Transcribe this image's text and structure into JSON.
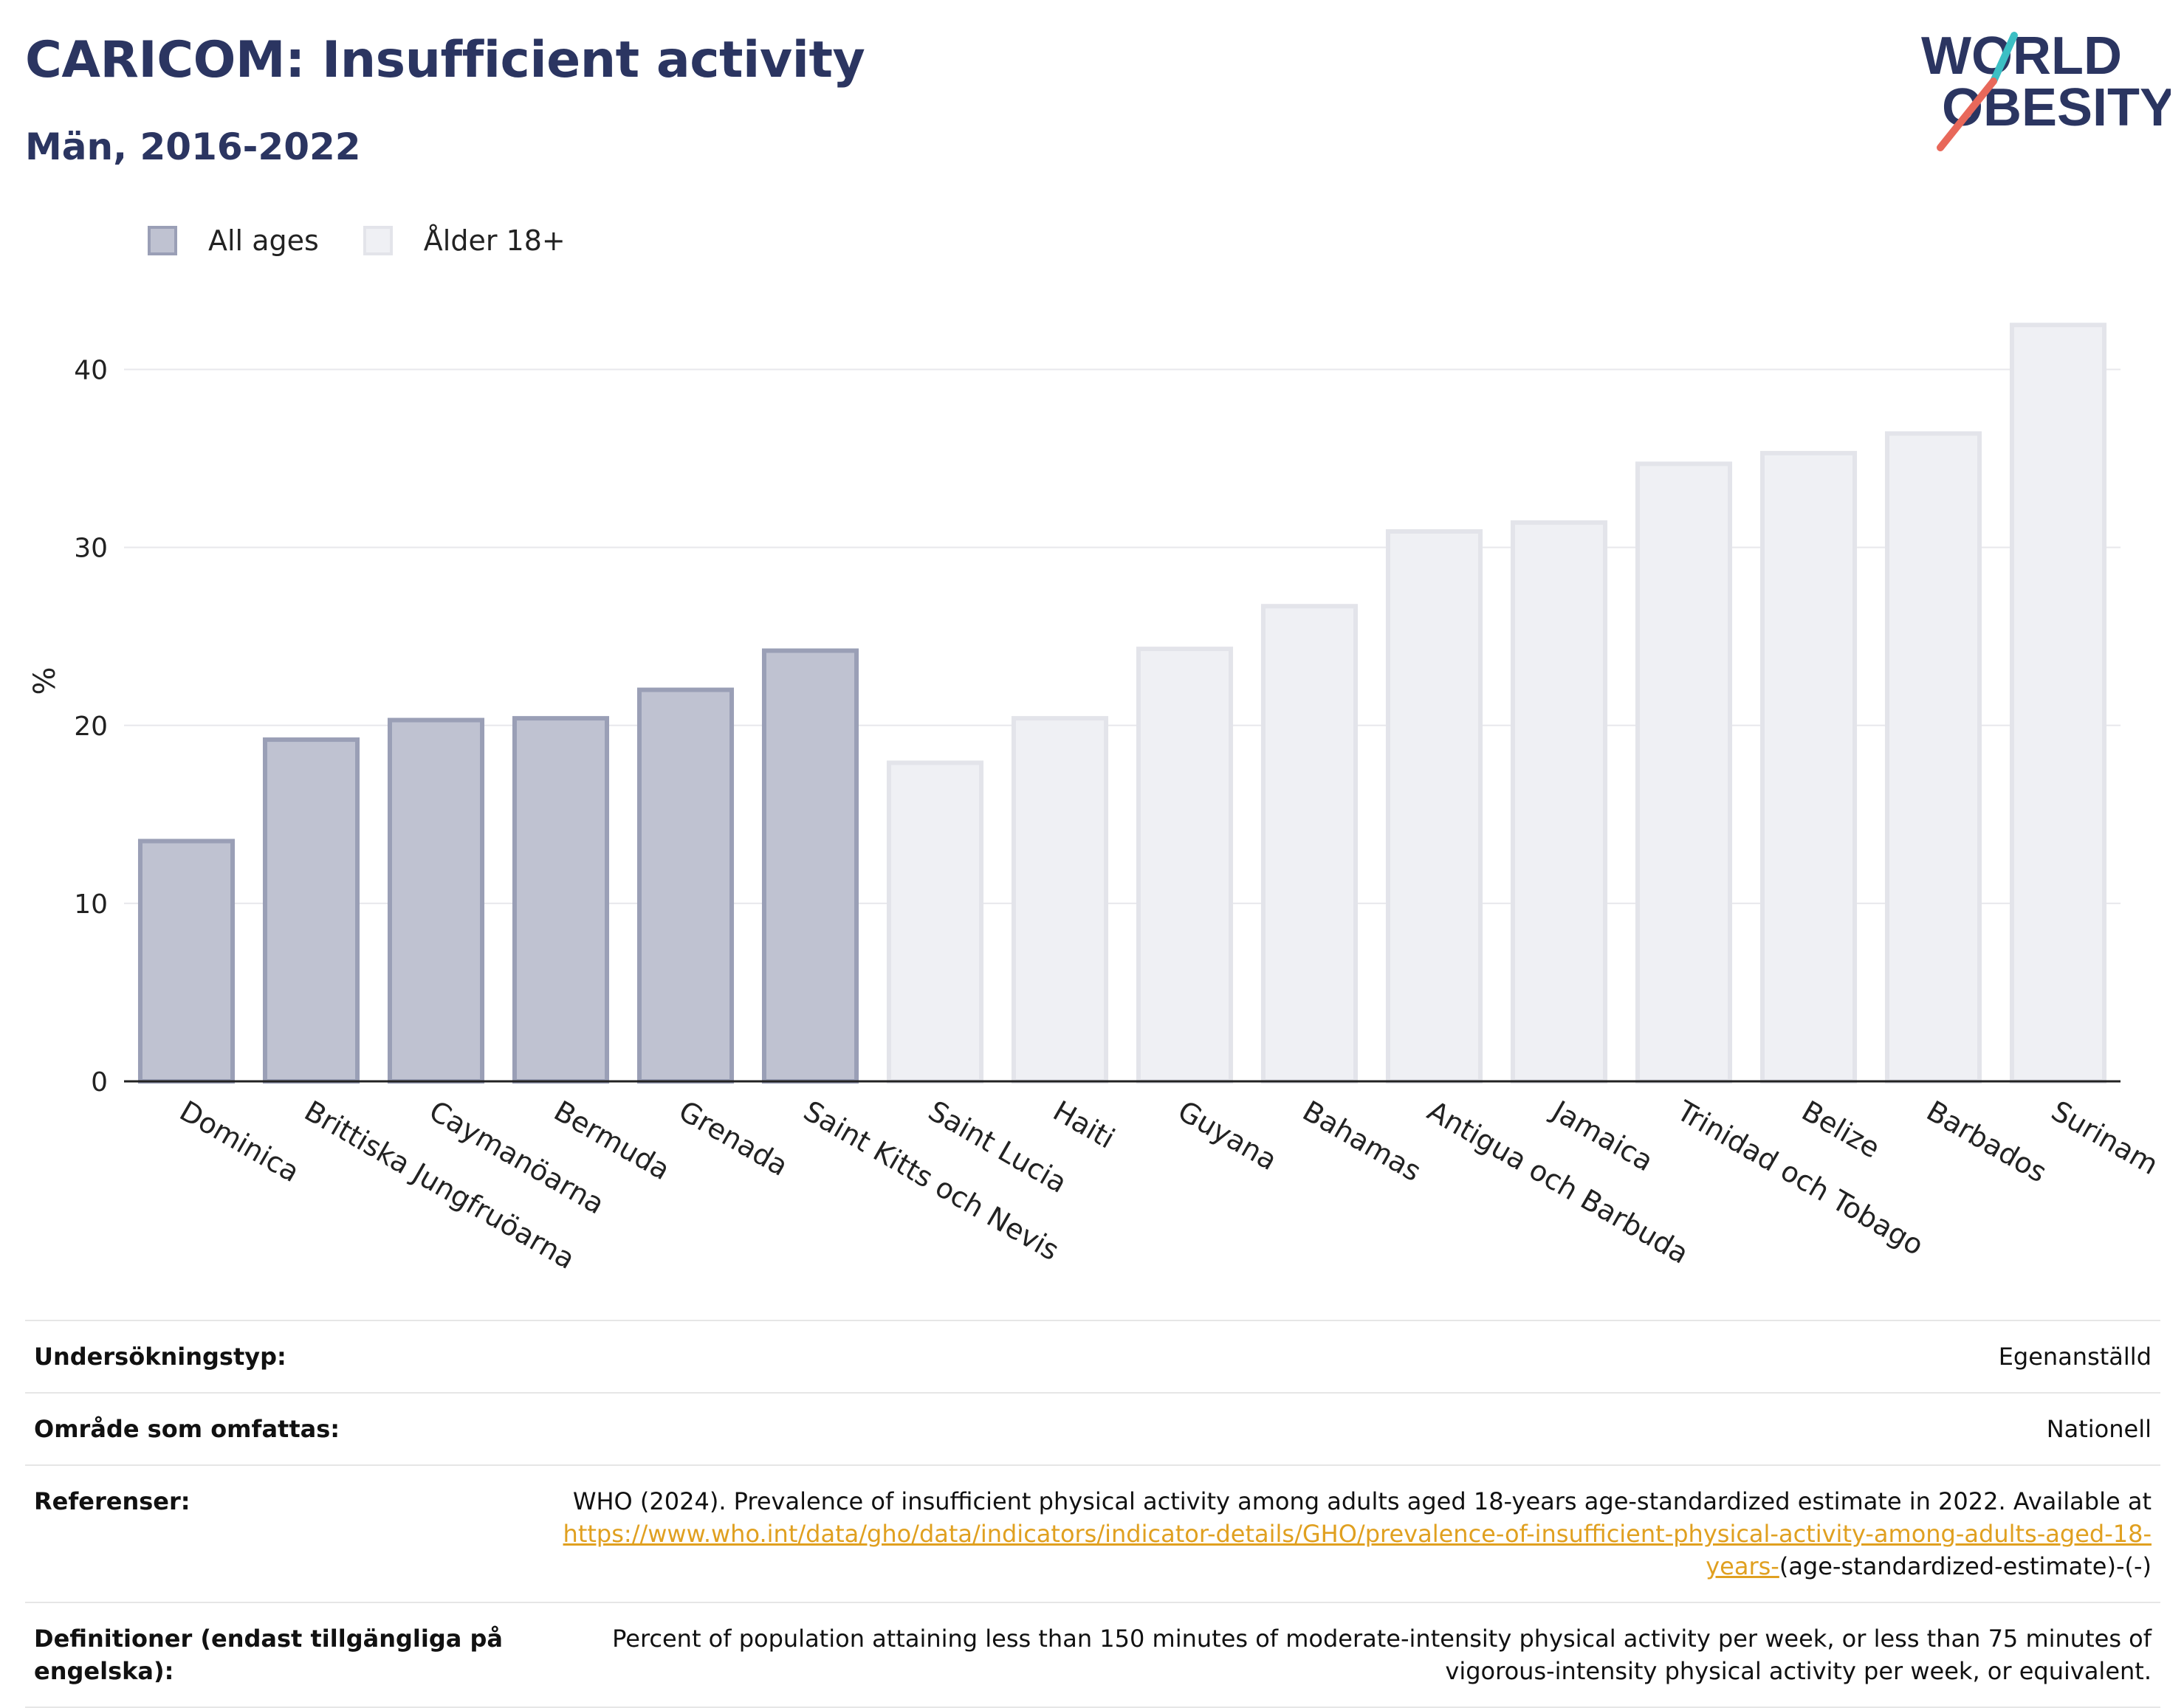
{
  "header": {
    "title": "CARICOM: Insufficient activity",
    "subtitle": "Män, 2016-2022"
  },
  "logo": {
    "line1": "WORLD",
    "line2": "OBESITY",
    "accent_teal": "#3cbfc4",
    "accent_red": "#e8685a"
  },
  "legend": [
    {
      "label": "All ages",
      "color": "#bfc2d1"
    },
    {
      "label": "Ålder 18+",
      "color": "#eff0f4"
    }
  ],
  "chart_data": {
    "type": "bar",
    "ylabel": "%",
    "ylim": [
      0,
      45
    ],
    "yticks": [
      0,
      10,
      20,
      30,
      40
    ],
    "grid": true,
    "legend_position": "top-left",
    "categories": [
      "Dominica",
      "Brittiska Jungfruöarna",
      "Caymanöarna",
      "Bermuda",
      "Grenada",
      "Saint Kitts och Nevis",
      "Saint Lucia",
      "Haiti",
      "Guyana",
      "Bahamas",
      "Antigua och Barbuda",
      "Jamaica",
      "Trinidad och Tobago",
      "Belize",
      "Barbados",
      "Surinam"
    ],
    "values": [
      13.5,
      19.2,
      20.3,
      20.4,
      22.0,
      24.2,
      17.9,
      20.4,
      24.3,
      26.7,
      30.9,
      31.4,
      34.7,
      35.3,
      36.4,
      42.5
    ],
    "series_index": [
      0,
      0,
      0,
      0,
      0,
      0,
      1,
      1,
      1,
      1,
      1,
      1,
      1,
      1,
      1,
      1
    ],
    "series": [
      {
        "name": "All ages",
        "fill": "#bfc2d1",
        "stroke": "#9a9fb6"
      },
      {
        "name": "Ålder 18+",
        "fill": "#eff0f4",
        "stroke": "#e3e4ea"
      }
    ]
  },
  "info": {
    "rows": [
      {
        "label": "Undersökningstyp:",
        "value": "Egenanställd"
      },
      {
        "label": "Område som omfattas:",
        "value": "Nationell"
      },
      {
        "label": "Referenser:",
        "value": "WHO (2024). Prevalence of insufficient physical activity among adults aged 18-years age-standardized estimate in 2022. Available at",
        "link": "https://www.who.int/data/gho/data/indicators/indicator-details/GHO/prevalence-of-insufficient-physical-activity-among-adults-aged-18-years-",
        "suffix": "(age-standardized-estimate)-(-)"
      },
      {
        "label": "Definitioner (endast tillgängliga på engelska):",
        "value": "Percent of population attaining less than 150 minutes of moderate-intensity physical activity per week, or less than 75 minutes of vigorous-intensity physical activity per week, or equivalent."
      }
    ]
  }
}
